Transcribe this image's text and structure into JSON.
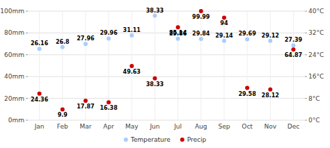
{
  "chart_data": {
    "type": "scatter",
    "categories": [
      "Jan",
      "Feb",
      "Mar",
      "Apr",
      "May",
      "Jun",
      "Jul",
      "Aug",
      "Sep",
      "Oct",
      "Nov",
      "Dec"
    ],
    "series": [
      {
        "name": "Temperature",
        "color": "#aaccff",
        "axis": "y2",
        "marker": "circle",
        "values": [
          26.16,
          26.8,
          27.96,
          29.96,
          31.11,
          38.33,
          29.86,
          29.84,
          29.14,
          29.69,
          29.12,
          27.39
        ]
      },
      {
        "name": "Precip",
        "color": "#cc0000",
        "marker": "circle",
        "values": [
          24.36,
          9.9,
          17.87,
          16.38,
          49.63,
          38.33,
          85.14,
          99.99,
          94,
          29.58,
          28.12,
          64.87
        ]
      }
    ],
    "ylim": [
      0,
      100
    ],
    "yticks": [
      {
        "value": 0,
        "label": "0mm"
      },
      {
        "value": 20,
        "label": "20mm"
      },
      {
        "value": 40,
        "label": "40mm"
      },
      {
        "value": 60,
        "label": "60mm"
      },
      {
        "value": 80,
        "label": "80mm"
      },
      {
        "value": 100,
        "label": "100mm"
      }
    ],
    "y2lim": [
      0,
      40
    ],
    "y2ticks": [
      {
        "value": 0,
        "label": "0°C"
      },
      {
        "value": 8,
        "label": "8°C"
      },
      {
        "value": 16,
        "label": "16°C"
      },
      {
        "value": 24,
        "label": "24°C"
      },
      {
        "value": 32,
        "label": "32°C"
      },
      {
        "value": 40,
        "label": "40°C"
      }
    ],
    "grid": true,
    "data_labels": true,
    "legend": "bottom"
  }
}
